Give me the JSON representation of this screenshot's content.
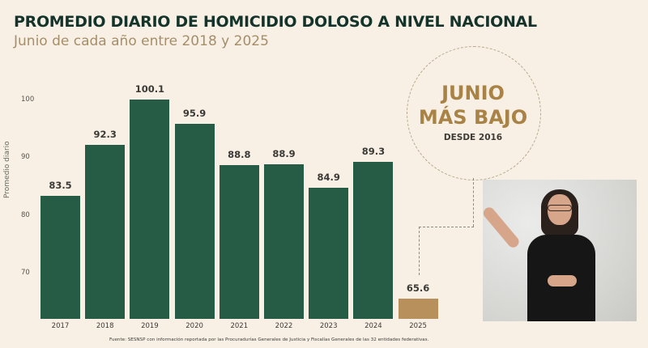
{
  "header": {
    "title": "PROMEDIO DIARIO DE HOMICIDIO DOLOSO A NIVEL NACIONAL",
    "subtitle": "Junio de cada año entre 2018 y 2025"
  },
  "callout": {
    "line1": "JUNIO",
    "line2": "MÁS BAJO",
    "line3": "DESDE 2016"
  },
  "footer": {
    "source": "Fuente: SESNSP con información reportada por las Procuradurías Generales de Justicia y Fiscalías Generales de las 32 entidades federativas."
  },
  "colors": {
    "bar_default": "#265c45",
    "bar_highlight": "#b8905c",
    "title": "#14332a",
    "subtitle": "#a58e6a",
    "callout_accent": "#a98245",
    "background": "#f8f0e5"
  },
  "chart_data": {
    "type": "bar",
    "title": "PROMEDIO DIARIO DE HOMICIDIO DOLOSO A NIVEL NACIONAL",
    "subtitle": "Junio de cada año entre 2018 y 2025",
    "categories": [
      "2017",
      "2018",
      "2019",
      "2020",
      "2021",
      "2022",
      "2023",
      "2024",
      "2025"
    ],
    "values": [
      83.5,
      92.3,
      100.1,
      95.9,
      88.8,
      88.9,
      84.9,
      89.3,
      65.6
    ],
    "value_labels": [
      "83.5",
      "92.3",
      "100.1",
      "95.9",
      "88.8",
      "88.9",
      "84.9",
      "89.3",
      "65.6"
    ],
    "highlight_index": 8,
    "xlabel": "",
    "ylabel": "Promedio diario",
    "yticks": [
      "70",
      "80",
      "90",
      "100"
    ],
    "ylim": [
      64,
      104
    ],
    "grid": false,
    "legend": null,
    "annotation": "JUNIO MÁS BAJO DESDE 2016"
  }
}
